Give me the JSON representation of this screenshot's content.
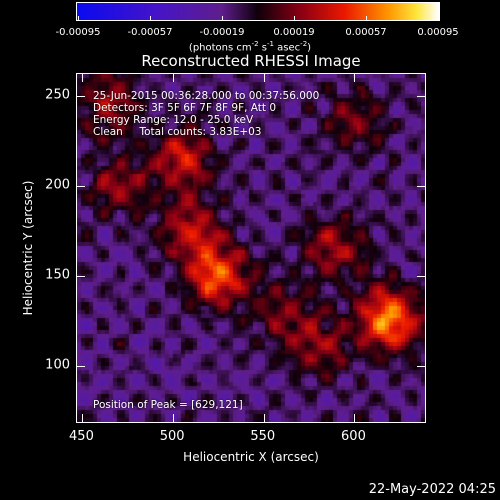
{
  "chart_data": {
    "type": "heatmap",
    "title": "Reconstructed RHESSI Image",
    "xlabel": "Heliocentric X (arcsec)",
    "ylabel": "Heliocentric Y (arcsec)",
    "xlim": [
      447,
      640
    ],
    "ylim": [
      68,
      262
    ],
    "xticks": [
      450,
      500,
      550,
      600
    ],
    "yticks": [
      100,
      150,
      200,
      250
    ],
    "colorbar": {
      "ticks": [
        "-0.00095",
        "-0.00057",
        "-0.00019",
        "0.00019",
        "0.00057",
        "0.00095"
      ],
      "range": [
        -0.00095,
        0.00095
      ],
      "units_prefix": "(photons cm",
      "units_exp1": "-2",
      "units_mid": " s",
      "units_exp2": "-1",
      "units_mid2": " asec",
      "units_exp3": "-2",
      "units_suffix": ")"
    },
    "annotations": {
      "time_range": "25-Jun-2015 00:36:28.000 to 00:37:56.000",
      "detectors": "Detectors: 3F 5F 6F 7F 8F 9F, Att 0",
      "energy": "Energy Range: 12.0 - 25.0 keV",
      "clean": "Clean     Total counts: 3.83E+03",
      "peak": "Position of Peak = [629,121]"
    },
    "peak": {
      "x": 629,
      "y": 121
    },
    "colormap": "red-temperature",
    "bright_regions": [
      {
        "x": 620,
        "y": 125,
        "amp": 1.0
      },
      {
        "x": 525,
        "y": 150,
        "amp": 0.85
      },
      {
        "x": 510,
        "y": 175,
        "amp": 0.55
      },
      {
        "x": 505,
        "y": 215,
        "amp": 0.6
      },
      {
        "x": 590,
        "y": 165,
        "amp": 0.5
      },
      {
        "x": 465,
        "y": 245,
        "amp": 0.5
      },
      {
        "x": 580,
        "y": 110,
        "amp": 0.45
      },
      {
        "x": 560,
        "y": 130,
        "amp": 0.35
      },
      {
        "x": 470,
        "y": 200,
        "amp": 0.4
      },
      {
        "x": 600,
        "y": 235,
        "amp": 0.35
      }
    ]
  },
  "footer": {
    "date": "22-May-2022 04:25"
  }
}
